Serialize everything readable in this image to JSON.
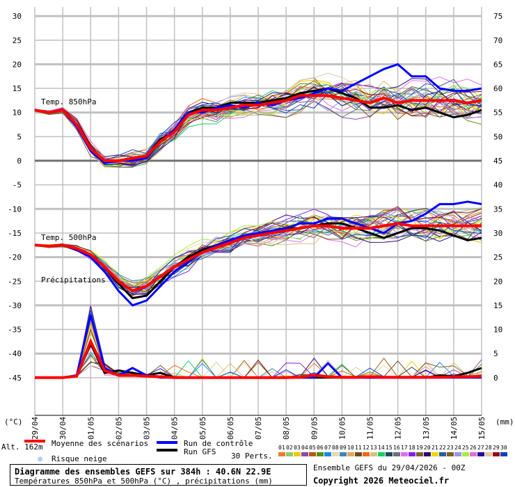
{
  "chart_data": {
    "type": "line",
    "title": "Diagramme des ensembles GEFS sur 384h : 40.6N 22.9E",
    "subtitle": "Températures 850hPa et 500hPa (°C) , précipitations (mm)",
    "run_info": "Ensemble GEFS du 29/04/2026 - 00Z",
    "copyright": "Copyright 2026 Meteociel.fr",
    "left_unit": "(°C)",
    "right_unit": "(mm)",
    "altitude": "Alt. 162m",
    "left_ylim": [
      -45,
      30
    ],
    "right_ylim": [
      0,
      75
    ],
    "left_ticks": [
      "30",
      "25",
      "20",
      "15",
      "10",
      "5",
      "0",
      "-5",
      "-10",
      "-15",
      "-20",
      "-25",
      "-30",
      "-35",
      "-40",
      "-45"
    ],
    "right_ticks": [
      "75",
      "70",
      "65",
      "60",
      "55",
      "50",
      "45",
      "40",
      "35",
      "30",
      "25",
      "20",
      "15",
      "10",
      "5",
      "0"
    ],
    "x_labels": [
      "29/04",
      "30/04",
      "01/05",
      "02/05",
      "03/05",
      "04/05",
      "05/05",
      "06/05",
      "07/05",
      "08/05",
      "09/05",
      "10/05",
      "11/05",
      "12/05",
      "13/05",
      "14/05",
      "15/05"
    ],
    "step_hours": 12,
    "panel_labels": {
      "t850": "Temp. 850hPa",
      "t500": "Temp. 500hPa",
      "precip": "Précipitations"
    },
    "t850": {
      "mean": [
        10.5,
        10,
        10.5,
        7.5,
        2.5,
        0,
        0,
        0.5,
        1,
        4,
        6,
        9.5,
        10.5,
        10.5,
        11,
        11.5,
        11.5,
        12,
        12.5,
        13.5,
        13.5,
        13.5,
        13,
        12.5,
        12,
        13,
        12,
        12.5,
        12.5,
        12.5,
        12.5,
        12,
        12.5
      ],
      "control": [
        10.5,
        10,
        10.5,
        7,
        2,
        -0.5,
        0,
        0,
        0.5,
        4,
        6.5,
        10,
        10,
        11,
        11.5,
        11,
        12,
        11.5,
        12.5,
        13,
        14,
        15,
        14.5,
        16,
        17.5,
        19,
        20,
        17.5,
        17.5,
        15,
        14.5,
        14.5,
        15
      ],
      "gfs": [
        10.5,
        10,
        10.5,
        7.5,
        2.5,
        0,
        0,
        0.5,
        1,
        4.5,
        6,
        10,
        11,
        11,
        12,
        12,
        12,
        12.5,
        13,
        14,
        14.5,
        15,
        14,
        13,
        11,
        11,
        11.5,
        10.5,
        11,
        10,
        9,
        9.5,
        10.5
      ]
    },
    "t500": {
      "mean": [
        -17.5,
        -17.7,
        -17.5,
        -18.2,
        -19.5,
        -22,
        -25,
        -27,
        -26,
        -24,
        -22,
        -20.5,
        -19,
        -18,
        -17,
        -16,
        -15.5,
        -15,
        -14.5,
        -14,
        -13.5,
        -13.5,
        -14,
        -14,
        -14,
        -13.5,
        -13,
        -13.5,
        -13.5,
        -13.5,
        -13.5,
        -13.5,
        -13.5
      ],
      "control": [
        -17.5,
        -17.7,
        -17.5,
        -18.5,
        -20,
        -23,
        -27,
        -30,
        -29,
        -26,
        -23,
        -21,
        -19,
        -17.5,
        -16.5,
        -15.5,
        -15,
        -14.5,
        -14,
        -13,
        -13,
        -12,
        -12,
        -13,
        -14,
        -15,
        -13,
        -12.5,
        -11,
        -9,
        -9,
        -8.5,
        -9
      ],
      "gfs": [
        -17.5,
        -17.7,
        -17.5,
        -18.2,
        -19.5,
        -22,
        -25.5,
        -28.5,
        -28,
        -25,
        -22,
        -20,
        -18.5,
        -17.5,
        -16.5,
        -16,
        -15.5,
        -14.5,
        -14,
        -14,
        -13.5,
        -13,
        -13,
        -14,
        -15,
        -16,
        -15,
        -14,
        -14,
        -14.5,
        -15.5,
        -16.5,
        -16
      ]
    },
    "precip_mm": {
      "mean": [
        0,
        0,
        0,
        0.3,
        7.5,
        1.5,
        0.5,
        0.5,
        0.3,
        0.2,
        0,
        0,
        0,
        0,
        0,
        0,
        0,
        0,
        0,
        0.1,
        0.5,
        0.2,
        0.1,
        0.1,
        0.2,
        0.1,
        0.1,
        0.1,
        0.1,
        0.1,
        0.2,
        0.2,
        0.3
      ],
      "control": [
        0,
        0,
        0,
        0.5,
        13,
        2,
        0.5,
        2,
        0.5,
        0,
        0,
        0,
        0,
        0,
        0,
        0,
        0,
        0,
        0,
        0,
        0,
        3,
        0,
        0,
        0,
        0,
        0,
        0,
        0,
        0,
        0,
        0,
        0
      ],
      "gfs": [
        0,
        0,
        0,
        0.3,
        7,
        1,
        1.5,
        1,
        0.5,
        1,
        0,
        0,
        0,
        0,
        0,
        0,
        0,
        0,
        0,
        0,
        0,
        0,
        0,
        0,
        0,
        0,
        0,
        0,
        0,
        0.5,
        0.3,
        1,
        2
      ]
    },
    "perturbation_spread": {
      "t850": [
        0.3,
        0.4,
        0.5,
        1,
        1.2,
        1.2,
        1.3,
        1.5,
        1.5,
        1.7,
        1.8,
        1.8,
        1.8,
        1.9,
        2,
        2,
        2.1,
        2.2,
        2.4,
        2.6,
        2.8,
        3,
        3,
        3.1,
        3.2,
        3.3,
        3.4,
        3.4,
        3.5,
        3.5,
        3.5,
        3.5,
        3.5
      ],
      "t500": [
        0.2,
        0.3,
        0.3,
        0.6,
        0.9,
        1.2,
        1.5,
        1.7,
        1.8,
        1.8,
        1.9,
        1.9,
        1.9,
        2,
        2,
        2,
        2,
        2.1,
        2.2,
        2.3,
        2.4,
        2.5,
        2.6,
        2.7,
        2.8,
        2.8,
        2.9,
        3,
        3,
        3,
        3,
        3,
        3
      ]
    },
    "legend": {
      "mean": {
        "label": "Moyenne des scénarios",
        "color": "#ff0000"
      },
      "control": {
        "label": "Run de contrôle",
        "color": "#0000ff"
      },
      "gfs": {
        "label": "Run GFS",
        "color": "#000000"
      },
      "snow": {
        "label": "Risque neige",
        "color": "#6aaee8"
      },
      "perts_label": "30 Perts.",
      "members": [
        {
          "id": "01",
          "color": "#e87f30"
        },
        {
          "id": "02",
          "color": "#8fc870"
        },
        {
          "id": "03",
          "color": "#f0c800"
        },
        {
          "id": "04",
          "color": "#8a4ca8"
        },
        {
          "id": "05",
          "color": "#b05a10"
        },
        {
          "id": "06",
          "color": "#5a8a10"
        },
        {
          "id": "07",
          "color": "#0a8cf0"
        },
        {
          "id": "08",
          "color": "#e8d8b0"
        },
        {
          "id": "09",
          "color": "#3a8ab8"
        },
        {
          "id": "10",
          "color": "#e8a858"
        },
        {
          "id": "11",
          "color": "#6a5020"
        },
        {
          "id": "12",
          "color": "#f06818"
        },
        {
          "id": "13",
          "color": "#d8c080"
        },
        {
          "id": "14",
          "color": "#10d060"
        },
        {
          "id": "15",
          "color": "#204868"
        },
        {
          "id": "16",
          "color": "#687078"
        },
        {
          "id": "17",
          "color": "#e070f0"
        },
        {
          "id": "18",
          "color": "#8020f0"
        },
        {
          "id": "19",
          "color": "#806030"
        },
        {
          "id": "20",
          "color": "#300870"
        },
        {
          "id": "21",
          "color": "#f0d800"
        },
        {
          "id": "22",
          "color": "#2860a0"
        },
        {
          "id": "23",
          "color": "#806020"
        },
        {
          "id": "24",
          "color": "#a090f0"
        },
        {
          "id": "25",
          "color": "#a0f040"
        },
        {
          "id": "26",
          "color": "#e070d0"
        },
        {
          "id": "27",
          "color": "#2010a0"
        },
        {
          "id": "28",
          "color": "#e0c8a8"
        },
        {
          "id": "29",
          "color": "#901010"
        },
        {
          "id": "30",
          "color": "#1040c0"
        }
      ]
    }
  }
}
